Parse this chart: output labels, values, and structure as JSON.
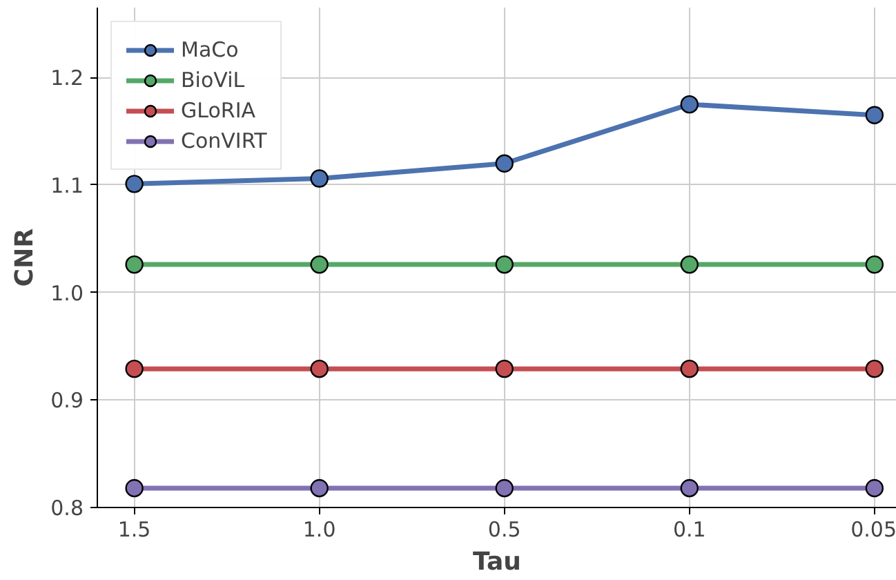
{
  "chart_data": {
    "type": "line",
    "xlabel": "Tau",
    "ylabel": "CNR",
    "categories": [
      "1.5",
      "1.0",
      "0.5",
      "0.1",
      "0.05"
    ],
    "series": [
      {
        "name": "MaCo",
        "color": "#4c72b0",
        "values": [
          1.101,
          1.106,
          1.12,
          1.175,
          1.165
        ]
      },
      {
        "name": "BioViL",
        "color": "#55a868",
        "values": [
          1.026,
          1.026,
          1.026,
          1.026,
          1.026
        ]
      },
      {
        "name": "GLoRIA",
        "color": "#c44e52",
        "values": [
          0.929,
          0.929,
          0.929,
          0.929,
          0.929
        ]
      },
      {
        "name": "ConVIRT",
        "color": "#8172b3",
        "values": [
          0.818,
          0.818,
          0.818,
          0.818,
          0.818
        ]
      }
    ],
    "ylim": [
      0.8,
      1.265
    ],
    "yticks": [
      0.8,
      0.9,
      {
        "value": 1.0,
        "label": "1.0"
      },
      1.1,
      1.2
    ],
    "grid": true,
    "legend": "top left",
    "marker": "circle",
    "line_style": "solid"
  }
}
